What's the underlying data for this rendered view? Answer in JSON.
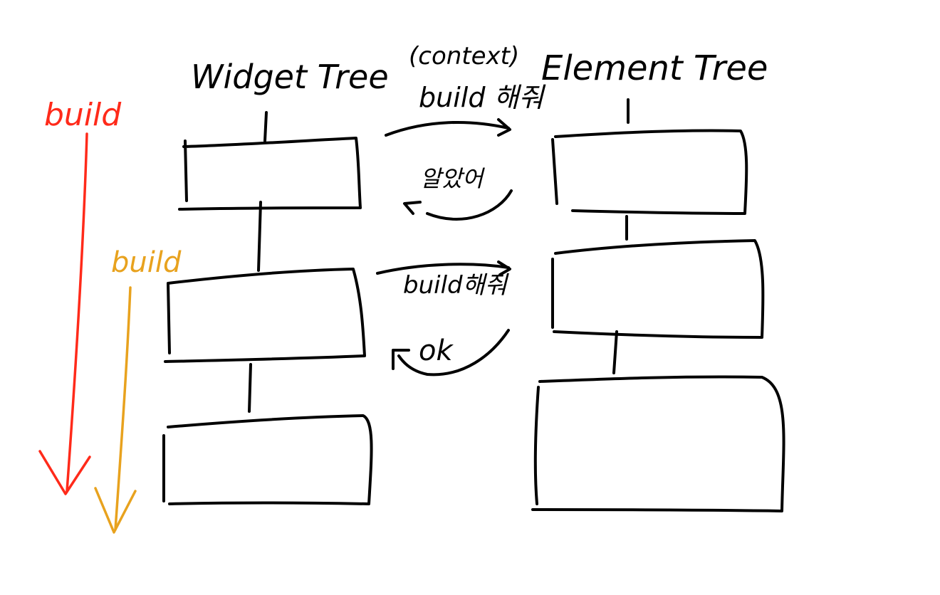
{
  "colors": {
    "ink": "#000000",
    "outer_build": "#ff2a1a",
    "inner_build": "#e8a21e",
    "background": "#ffffff"
  },
  "headers": {
    "widget_tree": "Widget Tree",
    "element_tree": "Element Tree"
  },
  "messages": {
    "context": "(context)",
    "build_request_1": "build 해줘",
    "ack_1": "알았어",
    "build_request_2": "build해줘",
    "ack_2": "ok"
  },
  "side_labels": {
    "outer_build": "build",
    "inner_build": "build"
  },
  "widget_tree": {
    "nodes": 3
  },
  "element_tree": {
    "nodes": 3
  }
}
